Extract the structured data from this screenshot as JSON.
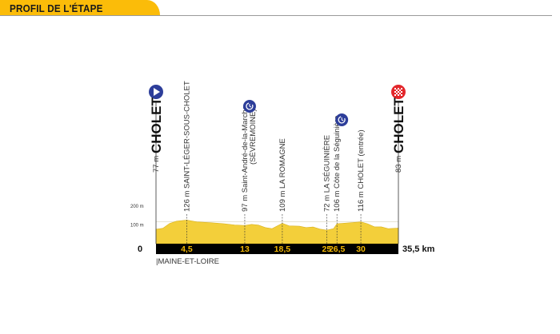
{
  "header": {
    "title": "PROFIL DE L'ÉTAPE"
  },
  "chart_data": {
    "type": "area",
    "title": "",
    "xlabel": "",
    "ylabel": "",
    "xlim": [
      0,
      35.5
    ],
    "ylim": [
      0,
      200
    ],
    "y_ticks": [
      {
        "value": 100,
        "label": "100 m"
      },
      {
        "value": 200,
        "label": "200 m"
      }
    ],
    "x_start_label": "0",
    "x_end_label": "35,5 km",
    "region_label": "|MAINE-ET-LOIRE",
    "profile": [
      [
        0,
        77
      ],
      [
        1,
        82
      ],
      [
        2,
        108
      ],
      [
        3,
        120
      ],
      [
        4.5,
        126
      ],
      [
        6,
        116
      ],
      [
        8,
        112
      ],
      [
        10,
        106
      ],
      [
        11.5,
        100
      ],
      [
        13,
        97
      ],
      [
        14,
        103
      ],
      [
        15,
        99
      ],
      [
        16,
        86
      ],
      [
        17,
        80
      ],
      [
        18.5,
        109
      ],
      [
        19.5,
        95
      ],
      [
        21,
        93
      ],
      [
        22,
        86
      ],
      [
        23,
        89
      ],
      [
        24,
        78
      ],
      [
        25,
        72
      ],
      [
        26,
        80
      ],
      [
        26.5,
        106
      ],
      [
        28,
        110
      ],
      [
        30,
        116
      ],
      [
        31,
        106
      ],
      [
        32,
        90
      ],
      [
        33,
        90
      ],
      [
        34,
        80
      ],
      [
        35.5,
        83
      ]
    ],
    "start": {
      "km": 0,
      "name": "CHOLET",
      "alt": "77 m",
      "icon": "start-icon"
    },
    "finish": {
      "km": 35.5,
      "name": "CHOLET",
      "alt": "83 m",
      "icon": "finish-icon"
    },
    "waypoints": [
      {
        "km": 4.5,
        "km_label": "4,5",
        "label": "126 m SAINT-LÉGER-SOUS-CHOLET",
        "label2": ""
      },
      {
        "km": 13,
        "km_label": "13",
        "label": "97 m Saint-André-de-la-Marche",
        "label2": "(SÈVREMOINE)",
        "icon": "time-check-icon"
      },
      {
        "km": 18.5,
        "km_label": "18,5",
        "label": "109 m LA ROMAGNE",
        "label2": ""
      },
      {
        "km": 25,
        "km_label": "25",
        "label": "72 m LA SÉGUINIÈRE",
        "label2": ""
      },
      {
        "km": 26.5,
        "km_label": "26,5",
        "label": "106 m Côte de la Séguinière",
        "label2": "",
        "icon": "time-check-icon"
      },
      {
        "km": 30,
        "km_label": "30",
        "label": "116 m CHOLET (entrée)",
        "label2": ""
      }
    ],
    "colors": {
      "profile": "#f3cf3a",
      "bar": "#000000",
      "km_labels": "#f2b705",
      "start": "#2d3e9a",
      "finish": "#e3262b",
      "header": "#fbbc09"
    }
  }
}
